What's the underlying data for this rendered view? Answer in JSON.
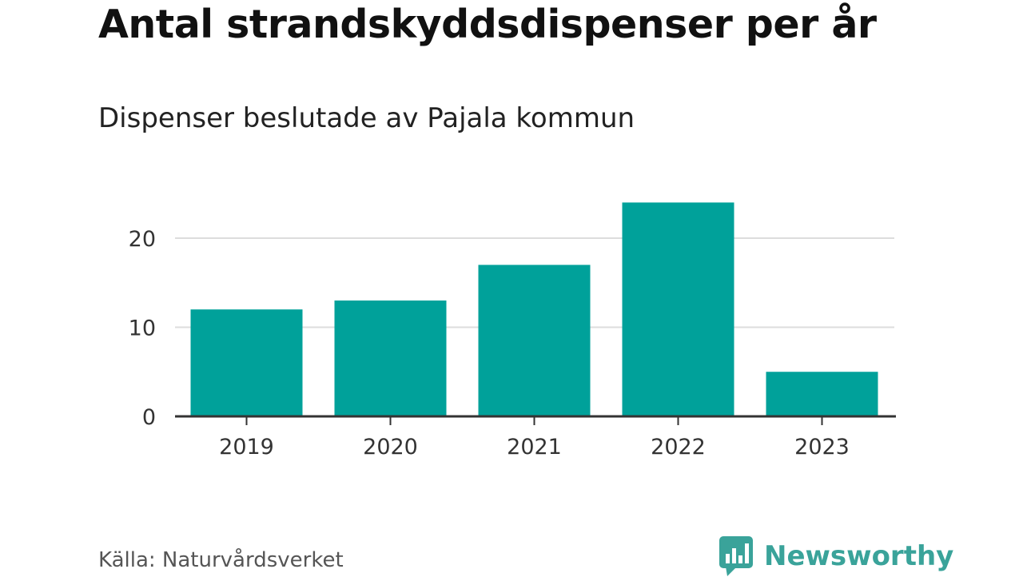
{
  "header": {
    "title": "Antal strandskyddsdispenser per år",
    "subtitle": "Dispenser beslutade av Pajala kommun"
  },
  "footer": {
    "source": "Källa: Naturvårdsverket",
    "brand": "Newsworthy",
    "brand_icon": "bar-chart-speech-bubble-icon",
    "brand_color": "#3aa39a"
  },
  "colors": {
    "bar": "#00a19a",
    "grid": "#dddddd",
    "axis": "#333333"
  },
  "chart_data": {
    "type": "bar",
    "title": "Antal strandskyddsdispenser per år",
    "subtitle": "Dispenser beslutade av Pajala kommun",
    "categories": [
      "2019",
      "2020",
      "2021",
      "2022",
      "2023"
    ],
    "values": [
      12,
      13,
      17,
      24,
      5
    ],
    "yticks": [
      0,
      10,
      20
    ],
    "ytick_labels": [
      "0",
      "10",
      "20"
    ],
    "ylim": [
      0,
      25
    ],
    "grid": true,
    "legend": "none"
  }
}
